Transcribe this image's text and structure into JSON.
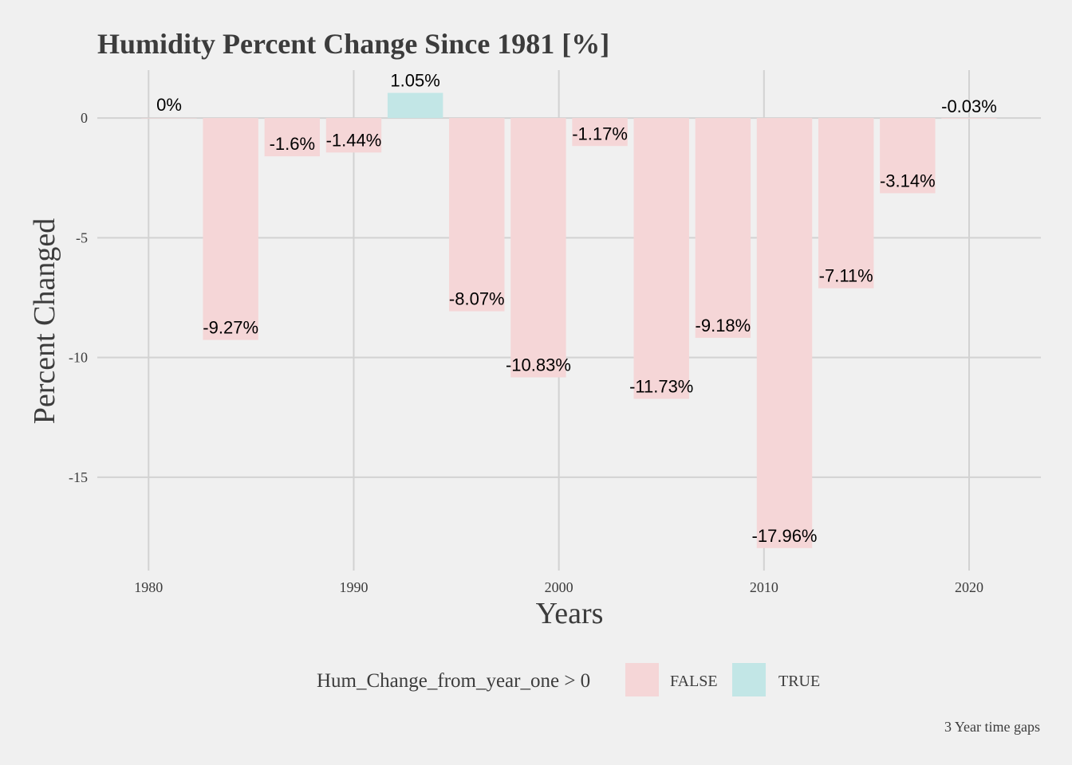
{
  "chart_data": {
    "type": "bar",
    "title": "Humidity Percent Change Since 1981 [%]",
    "xlabel": "Years",
    "ylabel": "Percent Changed",
    "xlim": [
      1977.5,
      2023.5
    ],
    "ylim": [
      -18.9,
      2.0
    ],
    "x_ticks": [
      1980,
      1990,
      2000,
      2010,
      2020
    ],
    "y_ticks": [
      0,
      -5,
      -10,
      -15
    ],
    "grid": true,
    "x": [
      1981,
      1984,
      1987,
      1990,
      1993,
      1996,
      1999,
      2002,
      2005,
      2008,
      2011,
      2014,
      2017,
      2020
    ],
    "values": [
      0,
      -9.27,
      -1.6,
      -1.44,
      1.05,
      -8.07,
      -10.83,
      -1.17,
      -11.73,
      -9.18,
      -17.96,
      -7.11,
      -3.14,
      -0.03
    ],
    "data_labels": [
      "0%",
      "-9.27%",
      "-1.6%",
      "-1.44%",
      "1.05%",
      "-8.07%",
      "-10.83%",
      "-1.17%",
      "-11.73%",
      "-9.18%",
      "-17.96%",
      "-7.11%",
      "-3.14%",
      "-0.03%"
    ],
    "legend": {
      "title": "Hum_Change_from_year_one > 0",
      "position": "bottom",
      "entries": [
        {
          "label": "FALSE",
          "color": "#f5d6d7"
        },
        {
          "label": "TRUE",
          "color": "#c2e6e6"
        }
      ]
    },
    "caption": "3 Year time gaps"
  }
}
